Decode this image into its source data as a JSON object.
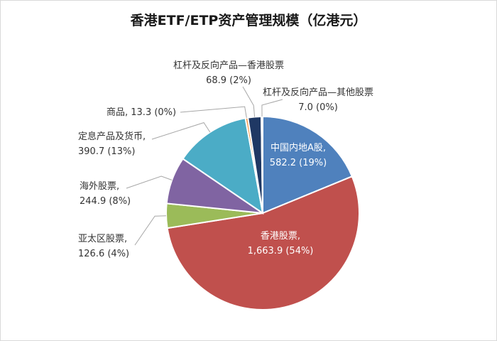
{
  "chart_data": {
    "type": "pie",
    "title": "香港ETF/ETP资产管理规模（亿港元）",
    "slices": [
      {
        "label": "中国内地A股",
        "value": 582.2,
        "percent": "19%",
        "value_text": "582.2",
        "color": "#4f81bd"
      },
      {
        "label": "香港股票",
        "value": 1663.9,
        "percent": "54%",
        "value_text": "1,663.9",
        "color": "#c0504d"
      },
      {
        "label": "亚太区股票",
        "value": 126.6,
        "percent": "4%",
        "value_text": "126.6",
        "color": "#9bbb59"
      },
      {
        "label": "海外股票",
        "value": 244.9,
        "percent": "8%",
        "value_text": "244.9",
        "color": "#8064a2"
      },
      {
        "label": "定息产品及货币",
        "value": 390.7,
        "percent": "13%",
        "value_text": "390.7",
        "color": "#4bacc6"
      },
      {
        "label": "商品",
        "value": 13.3,
        "percent": "0%",
        "value_text": "13.3",
        "color": "#f79646"
      },
      {
        "label": "杠杆及反向产品—香港股票",
        "value": 68.9,
        "percent": "2%",
        "value_text": "68.9",
        "color": "#1f3864"
      },
      {
        "label": "杠杆及反向产品—其他股票",
        "value": 7.0,
        "percent": "0%",
        "value_text": "7.0",
        "color": "#843c0c"
      }
    ]
  }
}
